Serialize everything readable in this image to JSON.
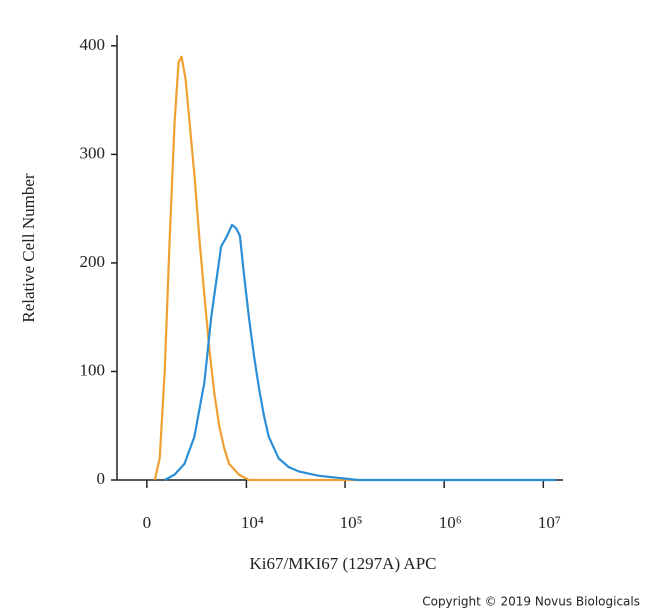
{
  "chart_data": {
    "type": "histogram-overlay",
    "y_label": "Relative Cell Number",
    "x_label": "Ki67/MKI67 (1297A) APC",
    "copyright": "Copyright © 2019 Novus Biologicals",
    "x_scale": "asinh",
    "xlim": [
      -1500,
      15800000
    ],
    "xticks": [
      0,
      {
        "value": 10000,
        "label": "10⁴"
      },
      {
        "value": 100000,
        "label": "10⁵"
      },
      {
        "value": 1000000,
        "label": "10⁶"
      },
      {
        "value": 10000000,
        "label": "10⁷"
      }
    ],
    "ylim": [
      0,
      410
    ],
    "yticks": [
      0,
      100,
      200,
      300,
      400
    ],
    "series": [
      {
        "color": "#f0a030",
        "x": [
          370,
          608,
          852,
          1110,
          1380,
          1612,
          1792,
          2048,
          2324,
          2694,
          3116,
          3548,
          4040,
          4580,
          5180,
          5840,
          6600,
          8380,
          10620,
          13400000
        ],
        "values": [
          0,
          20,
          100,
          220,
          330,
          385,
          390,
          370,
          330,
          280,
          220,
          170,
          120,
          80,
          50,
          30,
          15,
          5,
          0,
          0
        ]
      },
      {
        "color": "#2a8fd6",
        "x": [
          852,
          1380,
          1980,
          2690,
          3550,
          4240,
          4940,
          5440,
          6300,
          7100,
          7820,
          8580,
          9440,
          10620,
          11940,
          13420,
          15080,
          16920,
          21300,
          26900,
          33800,
          53600,
          85000,
          135000,
          13400000
        ],
        "values": [
          0,
          5,
          15,
          40,
          90,
          150,
          190,
          215,
          225,
          235,
          232,
          225,
          190,
          150,
          115,
          85,
          60,
          40,
          20,
          12,
          8,
          4,
          2,
          0,
          0
        ]
      }
    ]
  }
}
